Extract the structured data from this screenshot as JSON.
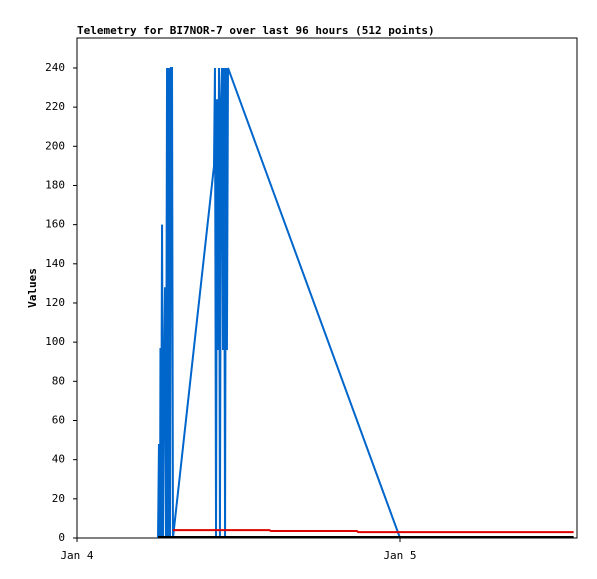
{
  "chart_data": {
    "type": "line",
    "title": "Telemetry for BI7NOR-7 over last 96 hours (512 points)",
    "y_label": "Values",
    "xlim": [
      0,
      37.15
    ],
    "xticks": [
      {
        "value": 0,
        "label": "Jan 4"
      },
      {
        "value": 24,
        "label": "Jan 5"
      }
    ],
    "ylim": [
      0,
      255.3
    ],
    "yticks": [
      0,
      20,
      40,
      60,
      80,
      100,
      120,
      140,
      160,
      180,
      200,
      220,
      240
    ],
    "series": [
      {
        "color": "#0066cc",
        "x": [
          6.02,
          6.09,
          6.17,
          6.2,
          6.24,
          6.32,
          6.39,
          6.46,
          6.54,
          6.61,
          6.69,
          6.76,
          6.84,
          6.91,
          6.98,
          7.06,
          7.13,
          10.18,
          10.25,
          10.33,
          10.4,
          10.48,
          10.55,
          10.62,
          10.7,
          10.77,
          10.85,
          10.92,
          11.0,
          11.07,
          11.14,
          11.22,
          24.0
        ],
        "values": [
          0,
          48,
          0,
          97,
          0,
          160,
          0,
          80,
          128,
          0,
          240,
          0,
          240,
          0,
          240,
          240,
          0,
          190,
          240,
          0,
          224,
          96,
          240,
          0,
          224,
          240,
          96,
          240,
          0,
          240,
          96,
          240,
          0
        ]
      },
      {
        "color": "#dd0000",
        "x": [
          7.13,
          14.3,
          14.4,
          20.8,
          20.9,
          36.9
        ],
        "values": [
          4,
          4,
          3.6,
          3.6,
          3,
          3
        ]
      },
      {
        "color": "#000000",
        "x": [
          6.02,
          36.9
        ],
        "values": [
          0.5,
          0.5
        ]
      }
    ]
  }
}
